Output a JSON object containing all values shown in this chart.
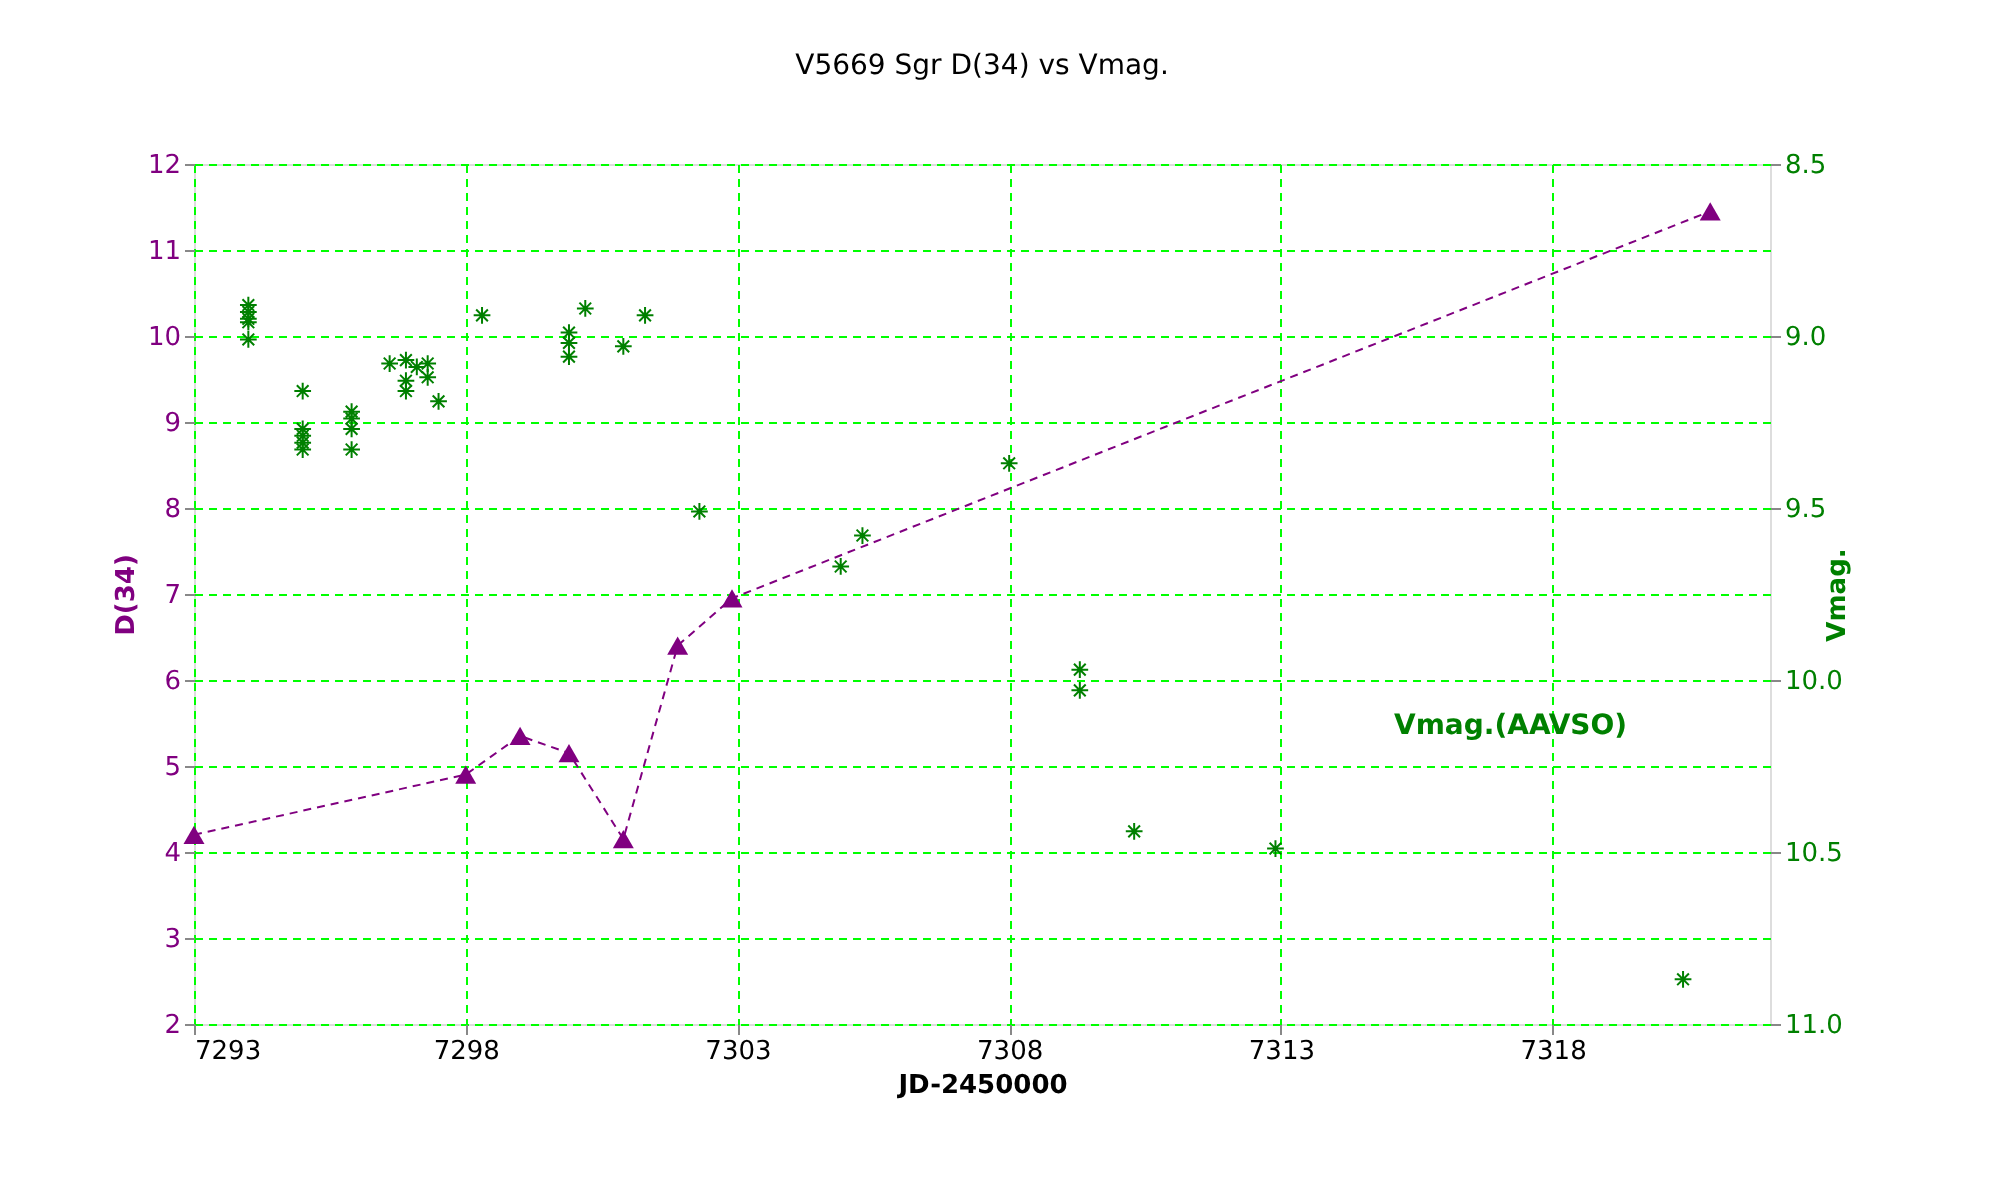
{
  "chart_data": {
    "type": "line",
    "title": "V5669 Sgr  D(34)  vs  Vmag.",
    "xlabel": "JD-2450000",
    "ylabel": "D(34)",
    "y2label": "Vmag.",
    "xlim": [
      7293,
      7322
    ],
    "xticks": [
      7293,
      7298,
      7303,
      7308,
      7313,
      7318
    ],
    "ylim": [
      2,
      12
    ],
    "yticks": [
      2,
      3,
      4,
      5,
      6,
      7,
      8,
      9,
      10,
      11,
      12
    ],
    "y2lim": [
      11.0,
      8.5
    ],
    "y2ticks": [
      {
        "value": 8.5,
        "label": "8.5"
      },
      {
        "value": 9,
        "label": "9.0"
      },
      {
        "value": 9.5,
        "label": "9.5"
      },
      {
        "value": 10,
        "label": "10.0"
      },
      {
        "value": 10.5,
        "label": "10.5"
      },
      {
        "value": 11,
        "label": "11.0"
      }
    ],
    "grid": true,
    "legend": "right",
    "series": [
      {
        "color": "#800080",
        "marker": "triangle",
        "line_style": "dashed",
        "x": [
          7293.0,
          7298.0,
          7299.0,
          7299.9,
          7300.9,
          7301.9,
          7302.9,
          7320.9
        ],
        "values": [
          4.2,
          4.9,
          5.35,
          5.15,
          4.15,
          6.4,
          6.95,
          11.45
        ]
      },
      {
        "type": "scatter",
        "name": "Vmag.(AAVSO)",
        "color": "#008000",
        "marker": "cross",
        "axis": "y2",
        "x": [
          7294.0,
          7294.0,
          7294.0,
          7294.0,
          7294.0,
          7295.0,
          7295.0,
          7295.0,
          7295.0,
          7295.0,
          7295.9,
          7295.9,
          7295.9,
          7295.9,
          7296.6,
          7296.9,
          7296.9,
          7296.9,
          7297.1,
          7297.3,
          7297.3,
          7297.5,
          7298.3,
          7299.9,
          7299.9,
          7299.9,
          7300.2,
          7300.9,
          7301.3,
          7302.3,
          7304.9,
          7305.3,
          7308.0,
          7309.3,
          7309.3,
          7310.3,
          7312.9,
          7320.4
        ],
        "values": [
          8.91,
          8.93,
          8.95,
          8.96,
          9.01,
          9.16,
          9.27,
          9.29,
          9.31,
          9.33,
          9.22,
          9.24,
          9.27,
          9.33,
          9.08,
          9.07,
          9.13,
          9.16,
          9.09,
          9.08,
          9.12,
          9.19,
          8.94,
          8.99,
          9.02,
          9.06,
          8.92,
          9.03,
          8.94,
          9.51,
          9.67,
          9.58,
          9.37,
          9.97,
          10.03,
          10.44,
          10.49,
          10.87
        ]
      }
    ]
  }
}
